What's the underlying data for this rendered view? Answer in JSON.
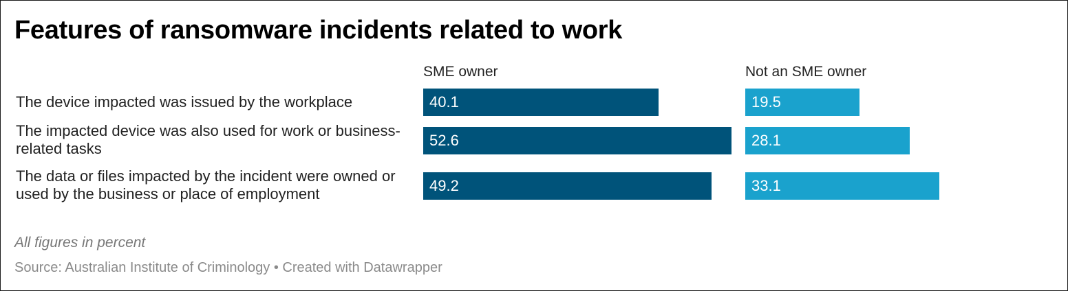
{
  "title": "Features of ransomware incidents related to work",
  "notes": "All figures in percent",
  "source": "Source: Australian Institute of Criminology • Created with Datawrapper",
  "colors": {
    "sme_owner": "#00537a",
    "not_sme_owner": "#1aa2cd"
  },
  "chart_data": {
    "type": "bar",
    "title": "Features of ransomware incidents related to work",
    "categories": [
      "The device impacted was issued by the workplace",
      "The impacted device was also used for work or business-related tasks",
      "The data or files impacted by the incident were owned or used by the business or place of employment"
    ],
    "series": [
      {
        "name": "SME owner",
        "values": [
          40.1,
          52.6,
          49.2
        ]
      },
      {
        "name": "Not an SME owner",
        "values": [
          19.5,
          28.1,
          33.1
        ]
      }
    ]
  }
}
